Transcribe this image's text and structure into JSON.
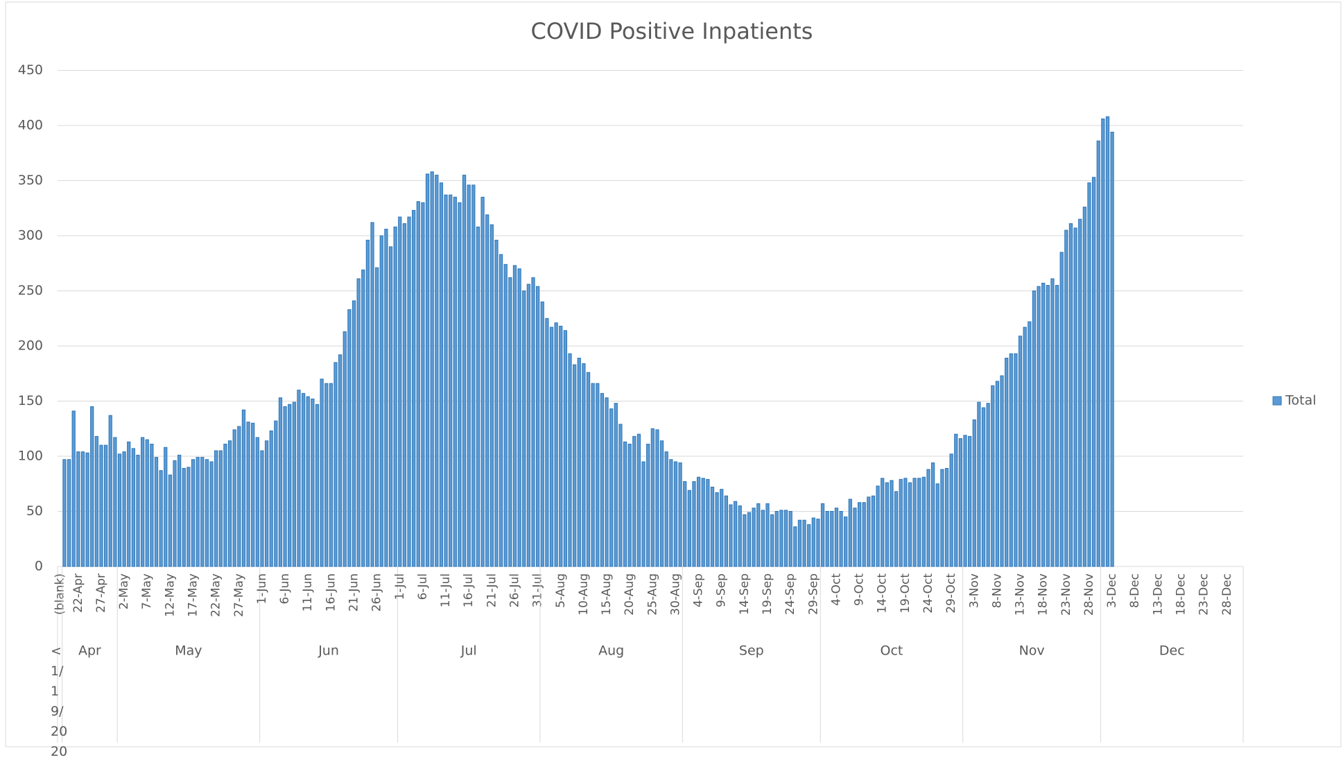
{
  "chart_data": {
    "type": "bar",
    "title": "COVID Positive Inpatients",
    "ylim": [
      0,
      450
    ],
    "yticks": [
      0,
      50,
      100,
      150,
      200,
      250,
      300,
      350,
      400,
      450
    ],
    "grid": true,
    "legend": "right",
    "category_groups": [
      {
        "name": "<1/19/2020",
        "categories": [
          "(blank)"
        ]
      },
      {
        "name": "Apr",
        "categories": [
          null,
          null,
          null,
          "22-Apr",
          null,
          null,
          null,
          null,
          "27-Apr",
          null,
          null,
          null
        ]
      },
      {
        "name": "May",
        "categories": [
          null,
          "2-May",
          null,
          null,
          null,
          null,
          "7-May",
          null,
          null,
          null,
          null,
          "12-May",
          null,
          null,
          null,
          null,
          "17-May",
          null,
          null,
          null,
          null,
          "22-May",
          null,
          null,
          null,
          null,
          "27-May",
          null,
          null,
          null,
          null
        ]
      },
      {
        "name": "Jun",
        "categories": [
          "1-Jun",
          null,
          null,
          null,
          null,
          "6-Jun",
          null,
          null,
          null,
          null,
          "11-Jun",
          null,
          null,
          null,
          null,
          "16-Jun",
          null,
          null,
          null,
          null,
          "21-Jun",
          null,
          null,
          null,
          null,
          "26-Jun",
          null,
          null,
          null,
          null
        ]
      },
      {
        "name": "Jul",
        "categories": [
          "1-Jul",
          null,
          null,
          null,
          null,
          "6-Jul",
          null,
          null,
          null,
          null,
          "11-Jul",
          null,
          null,
          null,
          null,
          "16-Jul",
          null,
          null,
          null,
          null,
          "21-Jul",
          null,
          null,
          null,
          null,
          "26-Jul",
          null,
          null,
          null,
          null,
          "31-Jul"
        ]
      },
      {
        "name": "Aug",
        "categories": [
          null,
          null,
          null,
          null,
          "5-Aug",
          null,
          null,
          null,
          null,
          "10-Aug",
          null,
          null,
          null,
          null,
          "15-Aug",
          null,
          null,
          null,
          null,
          "20-Aug",
          null,
          null,
          null,
          null,
          "25-Aug",
          null,
          null,
          null,
          null,
          "30-Aug",
          null
        ]
      },
      {
        "name": "Sep",
        "categories": [
          null,
          null,
          null,
          "4-Sep",
          null,
          null,
          null,
          null,
          "9-Sep",
          null,
          null,
          null,
          null,
          "14-Sep",
          null,
          null,
          null,
          null,
          "19-Sep",
          null,
          null,
          null,
          null,
          "24-Sep",
          null,
          null,
          null,
          null,
          "29-Sep",
          null
        ]
      },
      {
        "name": "Oct",
        "categories": [
          null,
          null,
          null,
          "4-Oct",
          null,
          null,
          null,
          null,
          "9-Oct",
          null,
          null,
          null,
          null,
          "14-Oct",
          null,
          null,
          null,
          null,
          "19-Oct",
          null,
          null,
          null,
          null,
          "24-Oct",
          null,
          null,
          null,
          null,
          "29-Oct",
          null,
          null
        ]
      },
      {
        "name": "Nov",
        "categories": [
          null,
          null,
          "3-Nov",
          null,
          null,
          null,
          null,
          "8-Nov",
          null,
          null,
          null,
          null,
          "13-Nov",
          null,
          null,
          null,
          null,
          "18-Nov",
          null,
          null,
          null,
          null,
          "23-Nov",
          null,
          null,
          null,
          null,
          "28-Nov",
          null,
          null
        ]
      },
      {
        "name": "Dec",
        "categories": [
          null,
          null,
          "3-Dec",
          null,
          null,
          null,
          null,
          "8-Dec",
          null,
          null,
          null,
          null,
          "13-Dec",
          null,
          null,
          null,
          null,
          "18-Dec",
          null,
          null,
          null,
          null,
          "23-Dec",
          null,
          null,
          null,
          null,
          "28-Dec",
          null,
          null,
          null
        ]
      }
    ],
    "series": [
      {
        "name": "Total",
        "color": "#5b9bd5",
        "values": [
          null,
          97,
          97,
          141,
          104,
          104,
          103,
          145,
          118,
          110,
          110,
          137,
          117,
          102,
          104,
          113,
          107,
          101,
          117,
          115,
          111,
          99,
          87,
          108,
          83,
          96,
          101,
          89,
          90,
          97,
          99,
          99,
          97,
          95,
          105,
          105,
          111,
          114,
          124,
          127,
          142,
          131,
          130,
          117,
          105,
          114,
          123,
          132,
          153,
          145,
          147,
          149,
          160,
          157,
          154,
          152,
          147,
          170,
          166,
          166,
          185,
          192,
          213,
          233,
          241,
          261,
          269,
          296,
          312,
          271,
          300,
          306,
          290,
          308,
          317,
          311,
          317,
          323,
          331,
          330,
          356,
          358,
          355,
          348,
          337,
          337,
          335,
          330,
          355,
          346,
          346,
          308,
          335,
          319,
          310,
          296,
          283,
          274,
          262,
          273,
          270,
          250,
          256,
          262,
          254,
          240,
          225,
          217,
          221,
          218,
          214,
          193,
          183,
          189,
          184,
          176,
          166,
          166,
          157,
          153,
          143,
          148,
          129,
          113,
          111,
          118,
          120,
          95,
          111,
          125,
          124,
          114,
          104,
          97,
          95,
          94,
          77,
          69,
          77,
          81,
          80,
          79,
          72,
          67,
          70,
          64,
          56,
          59,
          55,
          47,
          49,
          53,
          57,
          51,
          57,
          47,
          50,
          51,
          51,
          50,
          36,
          42,
          42,
          38,
          44,
          43,
          57,
          50,
          50,
          53,
          50,
          45,
          61,
          53,
          58,
          58,
          63,
          64,
          73,
          80,
          76,
          78,
          68,
          79,
          80,
          76,
          80,
          80,
          81,
          88,
          94,
          75,
          88,
          89,
          102,
          120,
          116,
          119,
          118,
          133,
          149,
          144,
          148,
          164,
          168,
          173,
          189,
          193,
          193,
          209,
          217,
          222,
          250,
          254,
          257,
          255,
          261,
          255,
          285,
          305,
          311,
          307,
          315,
          326,
          348,
          353,
          386,
          406,
          408,
          394,
          null,
          null,
          null,
          null,
          null,
          null,
          null,
          null,
          null,
          null,
          null,
          null,
          null,
          null,
          null,
          null,
          null,
          null,
          null,
          null,
          null,
          null,
          null,
          null,
          null,
          null,
          null,
          null
        ]
      }
    ]
  }
}
